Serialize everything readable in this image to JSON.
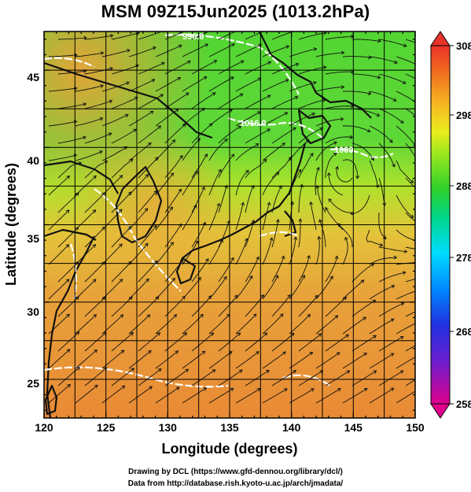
{
  "title": "MSM 09Z15Jun2025 (1013.2hPa)",
  "x_axis": {
    "label": "Longitude (degrees)",
    "ticks": [
      "120",
      "125",
      "130",
      "135",
      "140",
      "145",
      "150"
    ]
  },
  "y_axis": {
    "label": "Latitude  (degrees)",
    "ticks": [
      "25",
      "30",
      "35",
      "40",
      "45"
    ]
  },
  "colorbar": {
    "ticks": [
      "308",
      "298",
      "288",
      "278",
      "268",
      "258"
    ],
    "colors": [
      "#e0008c",
      "#3a1fd0",
      "#0078ff",
      "#00e0ff",
      "#00d68a",
      "#2fd12a",
      "#9de81f",
      "#e9ec1e",
      "#f6b521",
      "#f06a1f",
      "#e8322a"
    ]
  },
  "contour_labels": [
    "996.0",
    "1016.0",
    "1000"
  ],
  "credits": {
    "line1": "Drawing by DCL (https://www.gfd-dennou.org/library/dcl/)",
    "line2": "Data from http://database.rish.kyoto-u.ac.jp/arch/jmadata/"
  },
  "colors": {
    "warm": "#ea9a3a",
    "cool": "#3fcf33",
    "land": "#111111",
    "contour": "#ffffff"
  }
}
